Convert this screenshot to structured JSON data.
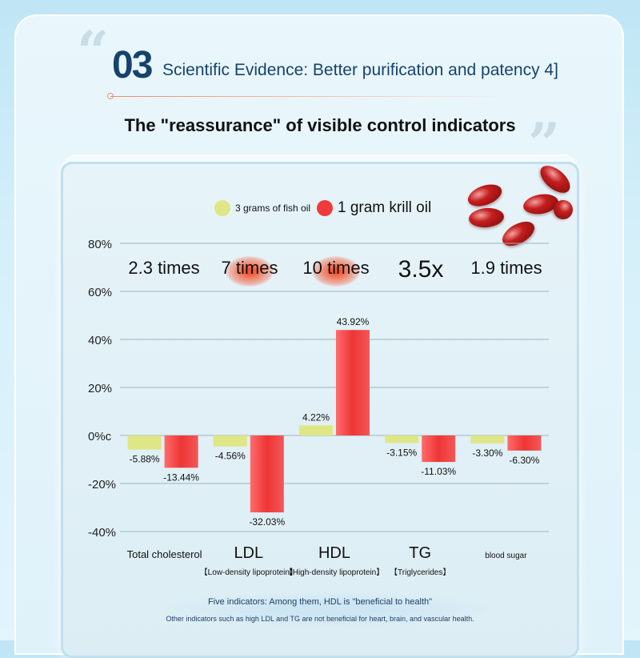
{
  "header": {
    "number": "03",
    "title": "Scientific Evidence: Better purification and patency 4]",
    "subtitle": "The \"reassurance\" of visible control indicators"
  },
  "colors": {
    "fish_oil": "#dfe685",
    "krill_oil": "#ef3b3b",
    "accent": "#16436b"
  },
  "legend": {
    "fish_oil": "3 grams of fish oil",
    "krill_oil": "1 gram krill oil"
  },
  "multipliers": [
    "2.3 times",
    "7 times",
    "10 times",
    "3.5x",
    "1.9 times"
  ],
  "chart_data": {
    "type": "bar",
    "categories": [
      "Total cholesterol",
      "LDL",
      "HDL",
      "TG",
      "blood sugar"
    ],
    "category_sublabels": [
      "",
      "【Low-density lipoprotein】",
      "【High-density lipoprotein】",
      "【Triglycerides】",
      ""
    ],
    "series": [
      {
        "name": "3 grams of fish oil",
        "values": [
          -5.88,
          -4.56,
          4.22,
          -3.15,
          -3.3
        ]
      },
      {
        "name": "1 gram krill oil",
        "values": [
          -13.44,
          -32.03,
          43.92,
          -11.03,
          -6.3
        ]
      }
    ],
    "data_labels": [
      [
        "-5.88%",
        "-4.56%",
        "4.22%",
        "-3.15%",
        "-3.30%"
      ],
      [
        "-13.44%",
        "-32.03%",
        "43.92%",
        "-11.03%",
        "-6.30%"
      ]
    ],
    "y_ticks": [
      "80%",
      "60%",
      "40%",
      "20%",
      "0%c",
      "-20%",
      "-40%"
    ],
    "y_tick_values": [
      80,
      60,
      40,
      20,
      0,
      -20,
      -40
    ],
    "ylim": [
      -40,
      80
    ],
    "grid": true,
    "legend_position": "top"
  },
  "footer": {
    "line1": "Five indicators: Among them, HDL is \"beneficial to health\"",
    "line2": "Other indicators such as high LDL and TG are not beneficial for heart, brain, and vascular health."
  }
}
